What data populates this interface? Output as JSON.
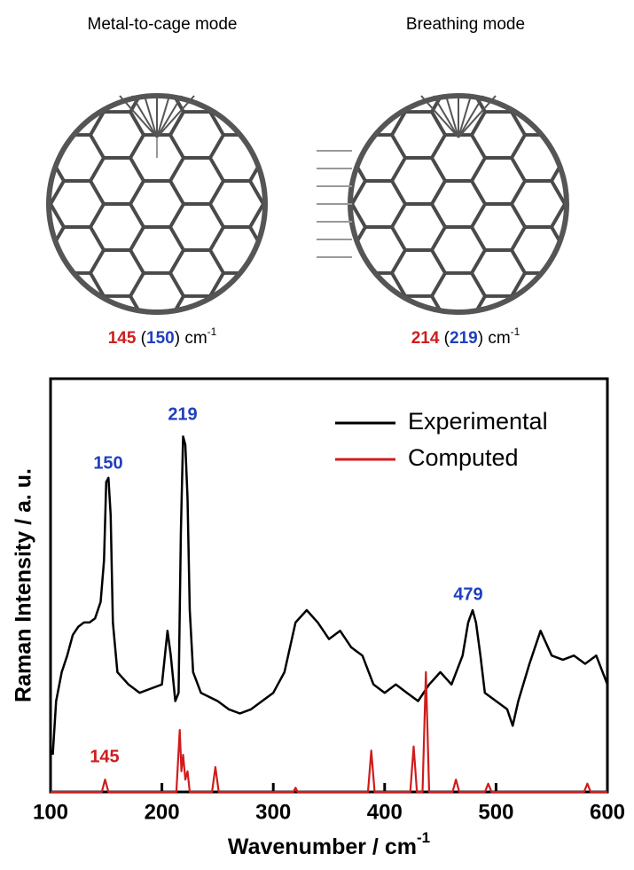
{
  "modes": [
    {
      "title": "Metal-to-cage mode",
      "frequency": {
        "computed": "145",
        "open": " (",
        "experimental": "150",
        "close": ") ",
        "unit": "cm",
        "superscript": "-1"
      }
    },
    {
      "title": "Breathing mode",
      "frequency": {
        "computed": "214",
        "open": " (",
        "experimental": "219",
        "close": ") ",
        "unit": "cm",
        "superscript": "-1"
      }
    }
  ],
  "chart_data": {
    "type": "line",
    "xlabel": "Wavenumber / cm",
    "xlabel_superscript": "-1",
    "ylabel": "Raman Intensity / a. u.",
    "xlim": [
      100,
      600
    ],
    "xticks": [
      100,
      200,
      300,
      400,
      500,
      600
    ],
    "ylim": [
      0,
      1
    ],
    "legend": "top-right",
    "series": [
      {
        "name": "Experimental",
        "color": "#000000",
        "x": [
          102,
          105,
          110,
          115,
          120,
          125,
          130,
          135,
          140,
          145,
          148,
          150,
          152,
          154,
          156,
          160,
          170,
          180,
          190,
          200,
          205,
          208,
          212,
          215,
          217,
          219,
          221,
          223,
          225,
          228,
          235,
          250,
          260,
          270,
          280,
          290,
          300,
          310,
          320,
          330,
          340,
          350,
          360,
          370,
          375,
          380,
          390,
          400,
          410,
          420,
          430,
          440,
          450,
          460,
          470,
          475,
          479,
          482,
          486,
          490,
          500,
          510,
          515,
          520,
          530,
          540,
          550,
          560,
          570,
          580,
          590,
          600
        ],
        "values": [
          0.09,
          0.22,
          0.29,
          0.33,
          0.38,
          0.4,
          0.41,
          0.41,
          0.42,
          0.46,
          0.56,
          0.75,
          0.76,
          0.67,
          0.41,
          0.29,
          0.26,
          0.24,
          0.25,
          0.26,
          0.39,
          0.33,
          0.22,
          0.24,
          0.63,
          0.86,
          0.84,
          0.71,
          0.44,
          0.29,
          0.24,
          0.22,
          0.2,
          0.19,
          0.2,
          0.22,
          0.24,
          0.29,
          0.41,
          0.44,
          0.41,
          0.37,
          0.39,
          0.35,
          0.34,
          0.33,
          0.26,
          0.24,
          0.26,
          0.24,
          0.22,
          0.26,
          0.29,
          0.26,
          0.33,
          0.41,
          0.44,
          0.41,
          0.33,
          0.24,
          0.22,
          0.2,
          0.16,
          0.22,
          0.31,
          0.39,
          0.33,
          0.32,
          0.33,
          0.31,
          0.33,
          0.26
        ]
      },
      {
        "name": "Computed",
        "color": "#d01c1c",
        "x": [
          100,
          146,
          149,
          152,
          213,
          216,
          217.5,
          219,
          221,
          223,
          225,
          245,
          248,
          251,
          318,
          320,
          322,
          385,
          388,
          391,
          423,
          426,
          429,
          434,
          437,
          440,
          461,
          464,
          467,
          490,
          493,
          496,
          579,
          582,
          585,
          600
        ],
        "values": [
          0,
          0,
          0.03,
          0,
          0,
          0.15,
          0.05,
          0.09,
          0.03,
          0.05,
          0,
          0,
          0.06,
          0,
          0,
          0.01,
          0,
          0,
          0.1,
          0,
          0,
          0.11,
          0,
          0,
          0.29,
          0,
          0,
          0.03,
          0,
          0,
          0.02,
          0,
          0,
          0.02,
          0,
          0
        ]
      }
    ],
    "annotations": [
      {
        "text": "150",
        "color": "#1f3fbf"
      },
      {
        "text": "219",
        "color": "#1f3fbf"
      },
      {
        "text": "479",
        "color": "#1f3fbf"
      },
      {
        "text": "145",
        "color": "#d01c1c"
      }
    ]
  }
}
